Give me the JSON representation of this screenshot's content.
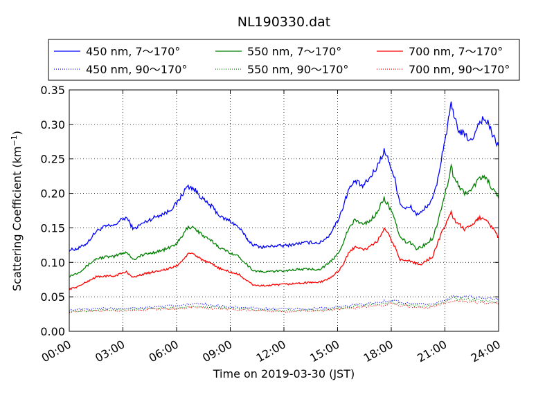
{
  "chart_data": {
    "type": "line",
    "title": "NL190330.dat",
    "xlabel": "Time on 2019-03-30 (JST)",
    "ylabel": "Scattering Coefficient (km",
    "ylabel_sup": "−1",
    "ylabel_close": ")",
    "xlim": [
      0,
      24
    ],
    "ylim": [
      0,
      0.35
    ],
    "grid": true,
    "legend_position": "top, above plot, 3 columns",
    "x_ticks": [
      0,
      3,
      6,
      9,
      12,
      15,
      18,
      21,
      24
    ],
    "x_tick_labels": [
      "00:00",
      "03:00",
      "06:00",
      "09:00",
      "12:00",
      "15:00",
      "18:00",
      "21:00",
      "24:00"
    ],
    "y_ticks": [
      0,
      0.05,
      0.1,
      0.15,
      0.2,
      0.25,
      0.3,
      0.35
    ],
    "y_tick_labels": [
      "0.00",
      "0.05",
      "0.10",
      "0.15",
      "0.20",
      "0.25",
      "0.30",
      "0.35"
    ],
    "x_unit": "hours",
    "series": [
      {
        "name": "450 nm, 7～170°",
        "color": "#0000ff",
        "style": "solid",
        "x": [
          0,
          0.5,
          1,
          1.5,
          2,
          2.5,
          2.8,
          3.2,
          3.6,
          4,
          4.5,
          5,
          5.5,
          6,
          6.3,
          6.6,
          6.9,
          7.2,
          7.6,
          8,
          8.5,
          9,
          9.5,
          10,
          10.3,
          10.8,
          11.5,
          12,
          12.5,
          13,
          13.5,
          14,
          14.5,
          15,
          15.3,
          15.6,
          16,
          16.4,
          16.8,
          17.2,
          17.6,
          17.9,
          18.2,
          18.5,
          18.8,
          19.1,
          19.4,
          19.7,
          20,
          20.3,
          20.6,
          20.9,
          21.1,
          21.35,
          21.5,
          21.8,
          22.1,
          22.5,
          22.8,
          23.1,
          23.4,
          23.7,
          24
        ],
        "y": [
          0.118,
          0.12,
          0.128,
          0.145,
          0.152,
          0.153,
          0.16,
          0.165,
          0.148,
          0.155,
          0.162,
          0.168,
          0.173,
          0.185,
          0.198,
          0.21,
          0.208,
          0.2,
          0.188,
          0.18,
          0.165,
          0.16,
          0.15,
          0.132,
          0.125,
          0.122,
          0.124,
          0.124,
          0.126,
          0.128,
          0.129,
          0.128,
          0.138,
          0.16,
          0.18,
          0.205,
          0.218,
          0.21,
          0.222,
          0.238,
          0.262,
          0.245,
          0.22,
          0.185,
          0.178,
          0.18,
          0.17,
          0.172,
          0.182,
          0.19,
          0.22,
          0.265,
          0.29,
          0.33,
          0.31,
          0.29,
          0.285,
          0.275,
          0.298,
          0.308,
          0.303,
          0.282,
          0.268
        ]
      },
      {
        "name": "550 nm, 7～170°",
        "color": "#008000",
        "style": "solid",
        "x": [
          0,
          0.5,
          1,
          1.5,
          2,
          2.5,
          2.8,
          3.2,
          3.6,
          4,
          4.5,
          5,
          5.5,
          6,
          6.3,
          6.6,
          6.9,
          7.2,
          7.6,
          8,
          8.5,
          9,
          9.5,
          10,
          10.3,
          10.8,
          11.5,
          12,
          12.5,
          13,
          13.5,
          14,
          14.5,
          15,
          15.3,
          15.6,
          16,
          16.4,
          16.8,
          17.2,
          17.6,
          17.9,
          18.2,
          18.5,
          18.8,
          19.1,
          19.4,
          19.7,
          20,
          20.3,
          20.6,
          20.9,
          21.1,
          21.35,
          21.5,
          21.8,
          22.1,
          22.5,
          22.8,
          23.1,
          23.4,
          23.7,
          24
        ],
        "y": [
          0.08,
          0.085,
          0.095,
          0.105,
          0.108,
          0.108,
          0.112,
          0.115,
          0.104,
          0.11,
          0.113,
          0.116,
          0.12,
          0.127,
          0.137,
          0.15,
          0.152,
          0.145,
          0.136,
          0.13,
          0.12,
          0.114,
          0.108,
          0.095,
          0.088,
          0.086,
          0.087,
          0.088,
          0.089,
          0.09,
          0.09,
          0.09,
          0.098,
          0.112,
          0.128,
          0.148,
          0.162,
          0.155,
          0.16,
          0.172,
          0.193,
          0.18,
          0.16,
          0.136,
          0.13,
          0.128,
          0.12,
          0.122,
          0.128,
          0.135,
          0.158,
          0.19,
          0.208,
          0.24,
          0.222,
          0.21,
          0.2,
          0.205,
          0.218,
          0.225,
          0.218,
          0.205,
          0.192
        ]
      },
      {
        "name": "700 nm, 7～170°",
        "color": "#ff0000",
        "style": "solid",
        "x": [
          0,
          0.5,
          1,
          1.5,
          2,
          2.5,
          2.8,
          3.2,
          3.6,
          4,
          4.5,
          5,
          5.5,
          6,
          6.3,
          6.6,
          6.9,
          7.2,
          7.6,
          8,
          8.5,
          9,
          9.5,
          10,
          10.3,
          10.8,
          11.5,
          12,
          12.5,
          13,
          13.5,
          14,
          14.5,
          15,
          15.3,
          15.6,
          16,
          16.4,
          16.8,
          17.2,
          17.6,
          17.9,
          18.2,
          18.5,
          18.8,
          19.1,
          19.4,
          19.7,
          20,
          20.3,
          20.6,
          20.9,
          21.1,
          21.35,
          21.5,
          21.8,
          22.1,
          22.5,
          22.8,
          23.1,
          23.4,
          23.7,
          24
        ],
        "y": [
          0.061,
          0.065,
          0.072,
          0.079,
          0.08,
          0.08,
          0.083,
          0.086,
          0.078,
          0.082,
          0.085,
          0.088,
          0.09,
          0.095,
          0.102,
          0.111,
          0.113,
          0.108,
          0.101,
          0.097,
          0.09,
          0.086,
          0.082,
          0.072,
          0.067,
          0.066,
          0.067,
          0.068,
          0.069,
          0.07,
          0.071,
          0.071,
          0.076,
          0.086,
          0.097,
          0.112,
          0.124,
          0.118,
          0.122,
          0.13,
          0.148,
          0.138,
          0.122,
          0.104,
          0.102,
          0.102,
          0.098,
          0.098,
          0.103,
          0.108,
          0.128,
          0.148,
          0.158,
          0.174,
          0.162,
          0.155,
          0.148,
          0.152,
          0.162,
          0.166,
          0.16,
          0.148,
          0.136
        ]
      },
      {
        "name": "450 nm, 90～170°",
        "color": "#0000ff",
        "style": "dotted",
        "x": [
          0,
          2,
          4,
          6,
          7,
          9,
          10.5,
          12,
          14,
          15,
          16,
          17,
          18,
          19,
          20,
          21,
          21.5,
          22.5,
          24
        ],
        "y": [
          0.031,
          0.033,
          0.034,
          0.037,
          0.04,
          0.036,
          0.033,
          0.032,
          0.033,
          0.035,
          0.038,
          0.041,
          0.045,
          0.04,
          0.038,
          0.045,
          0.052,
          0.05,
          0.046
        ]
      },
      {
        "name": "550 nm, 90～170°",
        "color": "#008000",
        "style": "dotted",
        "x": [
          0,
          2,
          4,
          6,
          7,
          9,
          10.5,
          12,
          14,
          15,
          16,
          17,
          18,
          19,
          20,
          21,
          21.5,
          22.5,
          24
        ],
        "y": [
          0.029,
          0.031,
          0.032,
          0.034,
          0.037,
          0.034,
          0.031,
          0.03,
          0.031,
          0.033,
          0.036,
          0.039,
          0.042,
          0.038,
          0.036,
          0.042,
          0.048,
          0.046,
          0.042
        ]
      },
      {
        "name": "700 nm, 90～170°",
        "color": "#ff0000",
        "style": "dotted",
        "x": [
          0,
          2,
          4,
          6,
          7,
          9,
          10.5,
          12,
          14,
          15,
          16,
          17,
          18,
          19,
          20,
          21,
          21.5,
          22.5,
          24
        ],
        "y": [
          0.028,
          0.03,
          0.031,
          0.033,
          0.035,
          0.032,
          0.03,
          0.029,
          0.03,
          0.032,
          0.034,
          0.037,
          0.04,
          0.036,
          0.034,
          0.04,
          0.045,
          0.043,
          0.04
        ]
      }
    ]
  }
}
